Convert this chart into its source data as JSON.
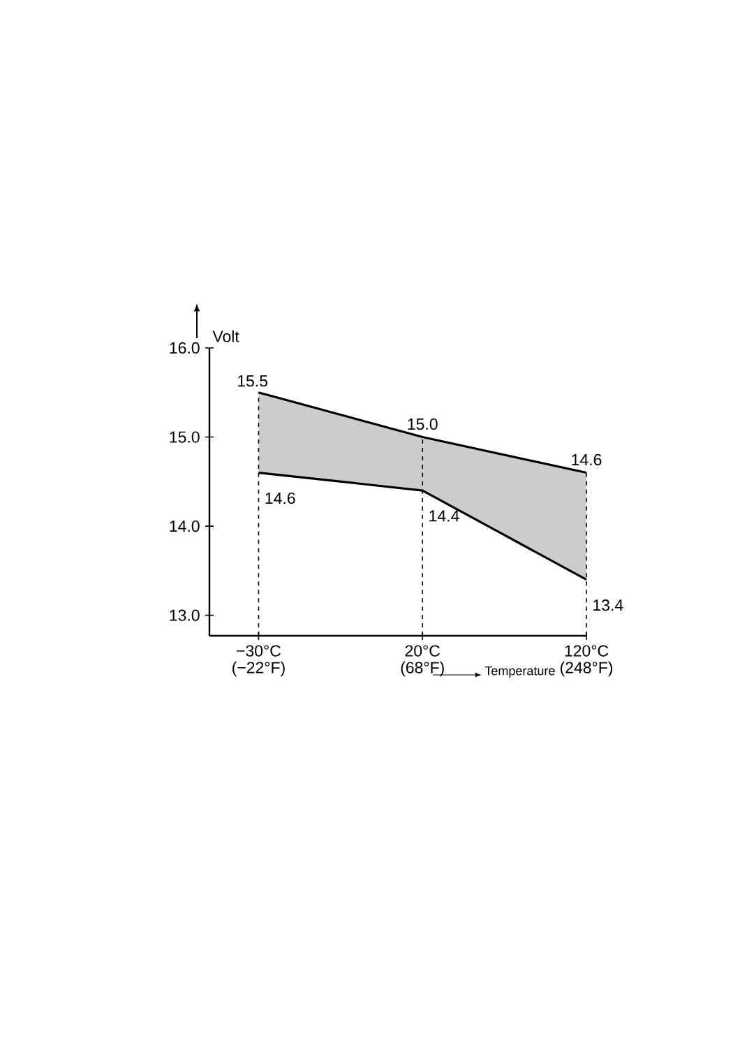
{
  "chart_data": {
    "type": "line",
    "xlabel": "Temperature",
    "ylabel": "Volt",
    "categories": [
      "−30°C (−22°F)",
      "20°C (68°F)",
      "120°C (248°F)"
    ],
    "series": [
      {
        "color": "#000000",
        "values": [
          15.5,
          15.0,
          14.6
        ],
        "value_labels": [
          "15.5",
          "15.0",
          "14.6"
        ],
        "lower": [
          14.6,
          14.4,
          13.4
        ],
        "upper": [
          15.5,
          15.0,
          14.6
        ]
      },
      {
        "color": "#000000",
        "values": [
          14.6,
          14.4,
          13.4
        ],
        "value_labels": [
          "14.6",
          "14.4",
          "13.4"
        ]
      }
    ],
    "ylim": [
      12.77,
      16.0
    ],
    "yticks": [
      {
        "value": 13,
        "label": "13.0"
      },
      {
        "value": 14,
        "label": "14.0"
      },
      {
        "value": 15,
        "label": "15.0"
      },
      {
        "value": 16,
        "label": "16.0"
      }
    ],
    "ref_lines": [
      {
        "axis": "x",
        "value": "−30°C (−22°F)",
        "line_style": "dashed"
      },
      {
        "axis": "x",
        "value": "20°C (68°F)",
        "line_style": "dashed"
      },
      {
        "axis": "x",
        "value": "120°C (248°F)",
        "line_style": "dashed"
      }
    ],
    "grid": false,
    "marker": "none",
    "line_style": "solid"
  }
}
